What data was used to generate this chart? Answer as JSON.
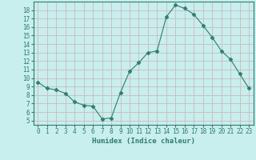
{
  "x": [
    0,
    1,
    2,
    3,
    4,
    5,
    6,
    7,
    8,
    9,
    10,
    11,
    12,
    13,
    14,
    15,
    16,
    17,
    18,
    19,
    20,
    21,
    22,
    23
  ],
  "y": [
    9.5,
    8.8,
    8.6,
    8.2,
    7.2,
    6.8,
    6.7,
    5.2,
    5.3,
    8.3,
    10.8,
    11.8,
    13.0,
    13.2,
    17.2,
    18.6,
    18.2,
    17.5,
    16.2,
    14.8,
    13.2,
    12.2,
    10.5,
    8.8
  ],
  "line_color": "#2e7d6e",
  "marker": "D",
  "marker_size": 2.5,
  "bg_color": "#c8eeee",
  "grid_color": "#b0d8d8",
  "tick_color": "#2e7d6e",
  "label_color": "#2e7d6e",
  "xlabel": "Humidex (Indice chaleur)",
  "xlim": [
    -0.5,
    23.5
  ],
  "ylim": [
    4.5,
    19.0
  ],
  "yticks": [
    5,
    6,
    7,
    8,
    9,
    10,
    11,
    12,
    13,
    14,
    15,
    16,
    17,
    18
  ],
  "xticks": [
    0,
    1,
    2,
    3,
    4,
    5,
    6,
    7,
    8,
    9,
    10,
    11,
    12,
    13,
    14,
    15,
    16,
    17,
    18,
    19,
    20,
    21,
    22,
    23
  ]
}
